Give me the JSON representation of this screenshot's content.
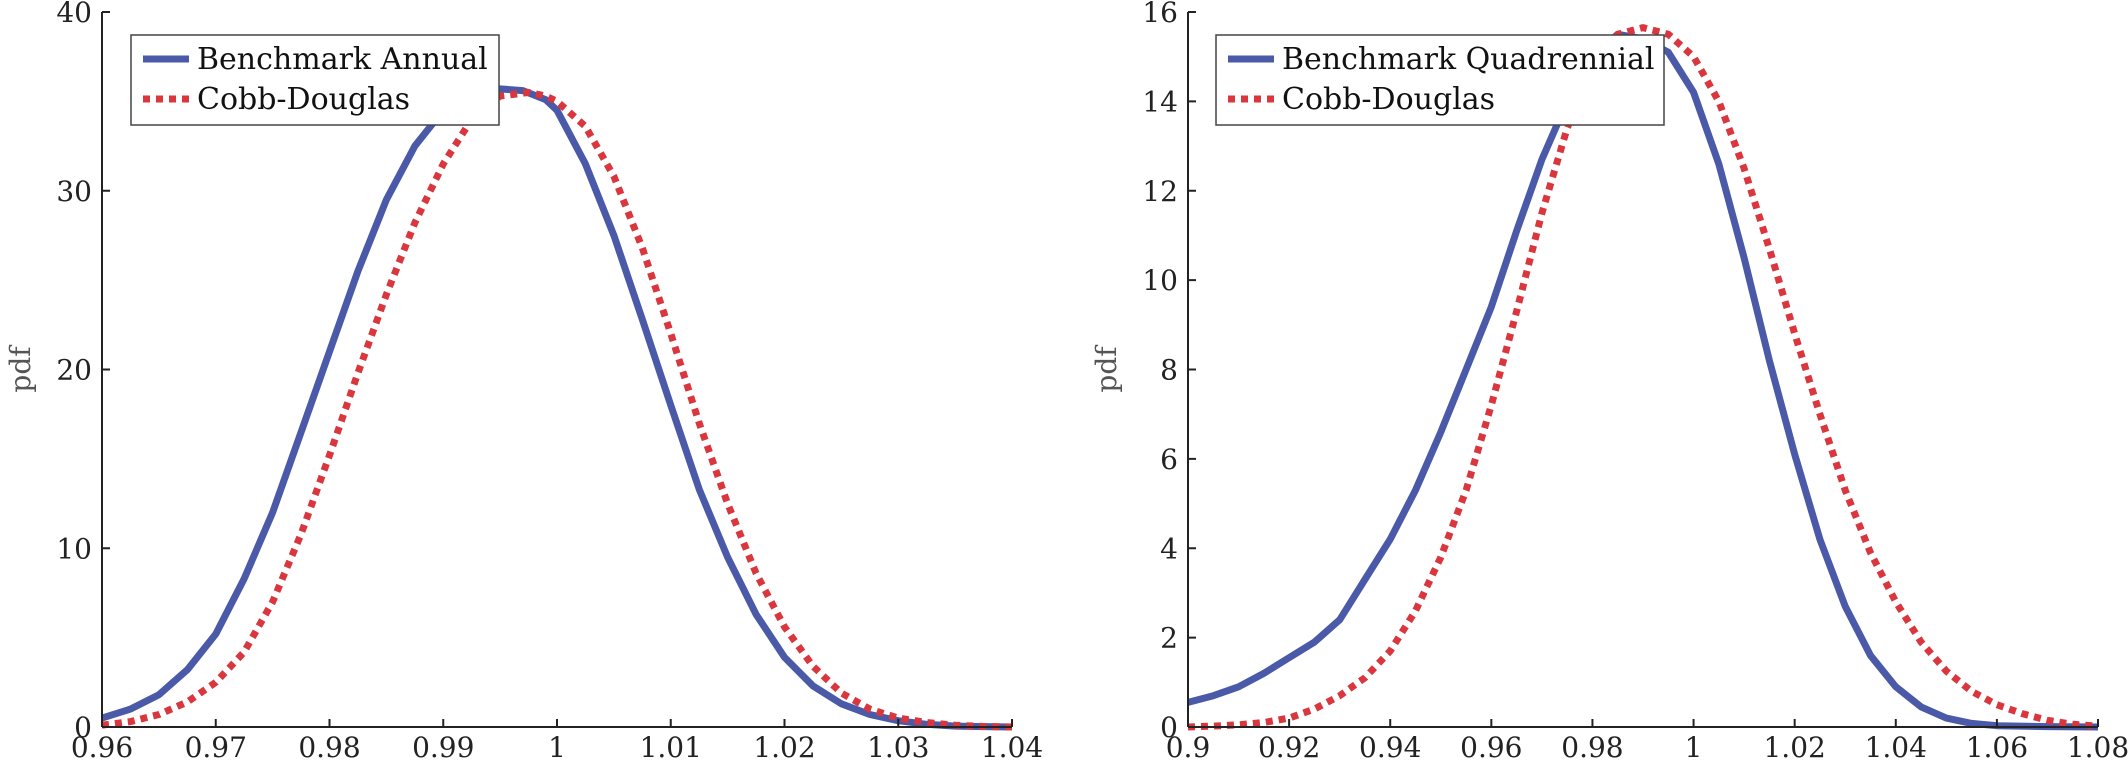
{
  "colors": {
    "benchmark": "#4a5aa8",
    "cobb_douglas": "#d9363e"
  },
  "chart_data": [
    {
      "type": "line",
      "ylabel": "pdf",
      "xlim": [
        0.96,
        1.04
      ],
      "ylim": [
        0,
        40
      ],
      "xticks": [
        "0.96",
        "0.97",
        "0.98",
        "0.99",
        "1",
        "1.01",
        "1.02",
        "1.03",
        "1.04"
      ],
      "yticks": [
        "0",
        "10",
        "20",
        "30",
        "40"
      ],
      "legend_position": "top-left",
      "series": [
        {
          "name": "Benchmark Annual",
          "style": "solid",
          "x": [
            0.96,
            0.9625,
            0.965,
            0.9675,
            0.97,
            0.9725,
            0.975,
            0.9775,
            0.98,
            0.9825,
            0.985,
            0.9875,
            0.99,
            0.9925,
            0.995,
            0.997,
            0.999,
            1.0,
            1.0025,
            1.005,
            1.0075,
            1.01,
            1.0125,
            1.015,
            1.0175,
            1.02,
            1.0225,
            1.025,
            1.0275,
            1.03,
            1.0325,
            1.035,
            1.0375,
            1.04
          ],
          "y": [
            0.5,
            1.0,
            1.8,
            3.2,
            5.2,
            8.3,
            12.0,
            16.5,
            21.0,
            25.5,
            29.5,
            32.5,
            34.5,
            35.3,
            35.7,
            35.6,
            35.1,
            34.5,
            31.5,
            27.5,
            22.8,
            18.0,
            13.3,
            9.5,
            6.3,
            3.9,
            2.3,
            1.3,
            0.7,
            0.35,
            0.15,
            0.05,
            0.02,
            0.0
          ]
        },
        {
          "name": "Cobb-Douglas",
          "style": "dotted",
          "x": [
            0.96,
            0.9625,
            0.965,
            0.9675,
            0.97,
            0.9725,
            0.975,
            0.9775,
            0.98,
            0.9825,
            0.985,
            0.9875,
            0.99,
            0.9925,
            0.995,
            0.9975,
            0.999,
            1.0,
            1.0025,
            1.005,
            1.0075,
            1.01,
            1.0125,
            1.015,
            1.0175,
            1.02,
            1.0225,
            1.025,
            1.0275,
            1.03,
            1.0325,
            1.035,
            1.0375,
            1.04
          ],
          "y": [
            0.1,
            0.3,
            0.7,
            1.4,
            2.5,
            4.2,
            7.0,
            10.8,
            15.2,
            19.8,
            24.2,
            28.2,
            31.5,
            34.0,
            35.3,
            35.5,
            35.3,
            35.0,
            33.6,
            30.8,
            26.8,
            22.0,
            17.0,
            12.5,
            8.6,
            5.6,
            3.4,
            1.9,
            1.0,
            0.5,
            0.25,
            0.1,
            0.03,
            0.0
          ]
        }
      ]
    },
    {
      "type": "line",
      "ylabel": "pdf",
      "xlim": [
        0.9,
        1.08
      ],
      "ylim": [
        0,
        16
      ],
      "xticks": [
        "0.9",
        "0.92",
        "0.94",
        "0.96",
        "0.98",
        "1",
        "1.02",
        "1.04",
        "1.06",
        "1.08"
      ],
      "yticks": [
        "0",
        "2",
        "4",
        "6",
        "8",
        "10",
        "12",
        "14",
        "16"
      ],
      "legend_position": "top-left",
      "series": [
        {
          "name": "Benchmark Quadrennial",
          "style": "solid",
          "x": [
            0.9,
            0.905,
            0.91,
            0.915,
            0.92,
            0.925,
            0.93,
            0.935,
            0.94,
            0.945,
            0.95,
            0.955,
            0.96,
            0.965,
            0.97,
            0.975,
            0.98,
            0.985,
            0.99,
            0.995,
            1.0,
            1.005,
            1.01,
            1.015,
            1.02,
            1.025,
            1.03,
            1.035,
            1.04,
            1.045,
            1.05,
            1.055,
            1.06,
            1.07,
            1.08
          ],
          "y": [
            0.55,
            0.7,
            0.9,
            1.2,
            1.55,
            1.9,
            2.4,
            3.3,
            4.2,
            5.3,
            6.6,
            8.0,
            9.4,
            11.1,
            12.7,
            14.0,
            15.0,
            15.5,
            15.4,
            15.1,
            14.2,
            12.6,
            10.5,
            8.2,
            6.1,
            4.2,
            2.7,
            1.6,
            0.9,
            0.45,
            0.2,
            0.08,
            0.03,
            0.01,
            0.0
          ]
        },
        {
          "name": "Cobb-Douglas",
          "style": "dotted",
          "x": [
            0.9,
            0.905,
            0.91,
            0.915,
            0.92,
            0.925,
            0.93,
            0.935,
            0.94,
            0.945,
            0.95,
            0.955,
            0.96,
            0.965,
            0.97,
            0.975,
            0.98,
            0.985,
            0.99,
            0.995,
            1.0,
            1.005,
            1.01,
            1.015,
            1.02,
            1.025,
            1.03,
            1.035,
            1.04,
            1.045,
            1.05,
            1.055,
            1.06,
            1.065,
            1.07,
            1.075,
            1.08
          ],
          "y": [
            0.0,
            0.02,
            0.05,
            0.1,
            0.2,
            0.4,
            0.7,
            1.1,
            1.7,
            2.6,
            3.8,
            5.3,
            7.2,
            9.3,
            11.5,
            13.4,
            14.8,
            15.5,
            15.65,
            15.5,
            15.0,
            14.0,
            12.5,
            10.7,
            8.8,
            7.0,
            5.3,
            3.9,
            2.8,
            1.9,
            1.25,
            0.8,
            0.5,
            0.3,
            0.15,
            0.06,
            0.02
          ]
        }
      ]
    }
  ]
}
